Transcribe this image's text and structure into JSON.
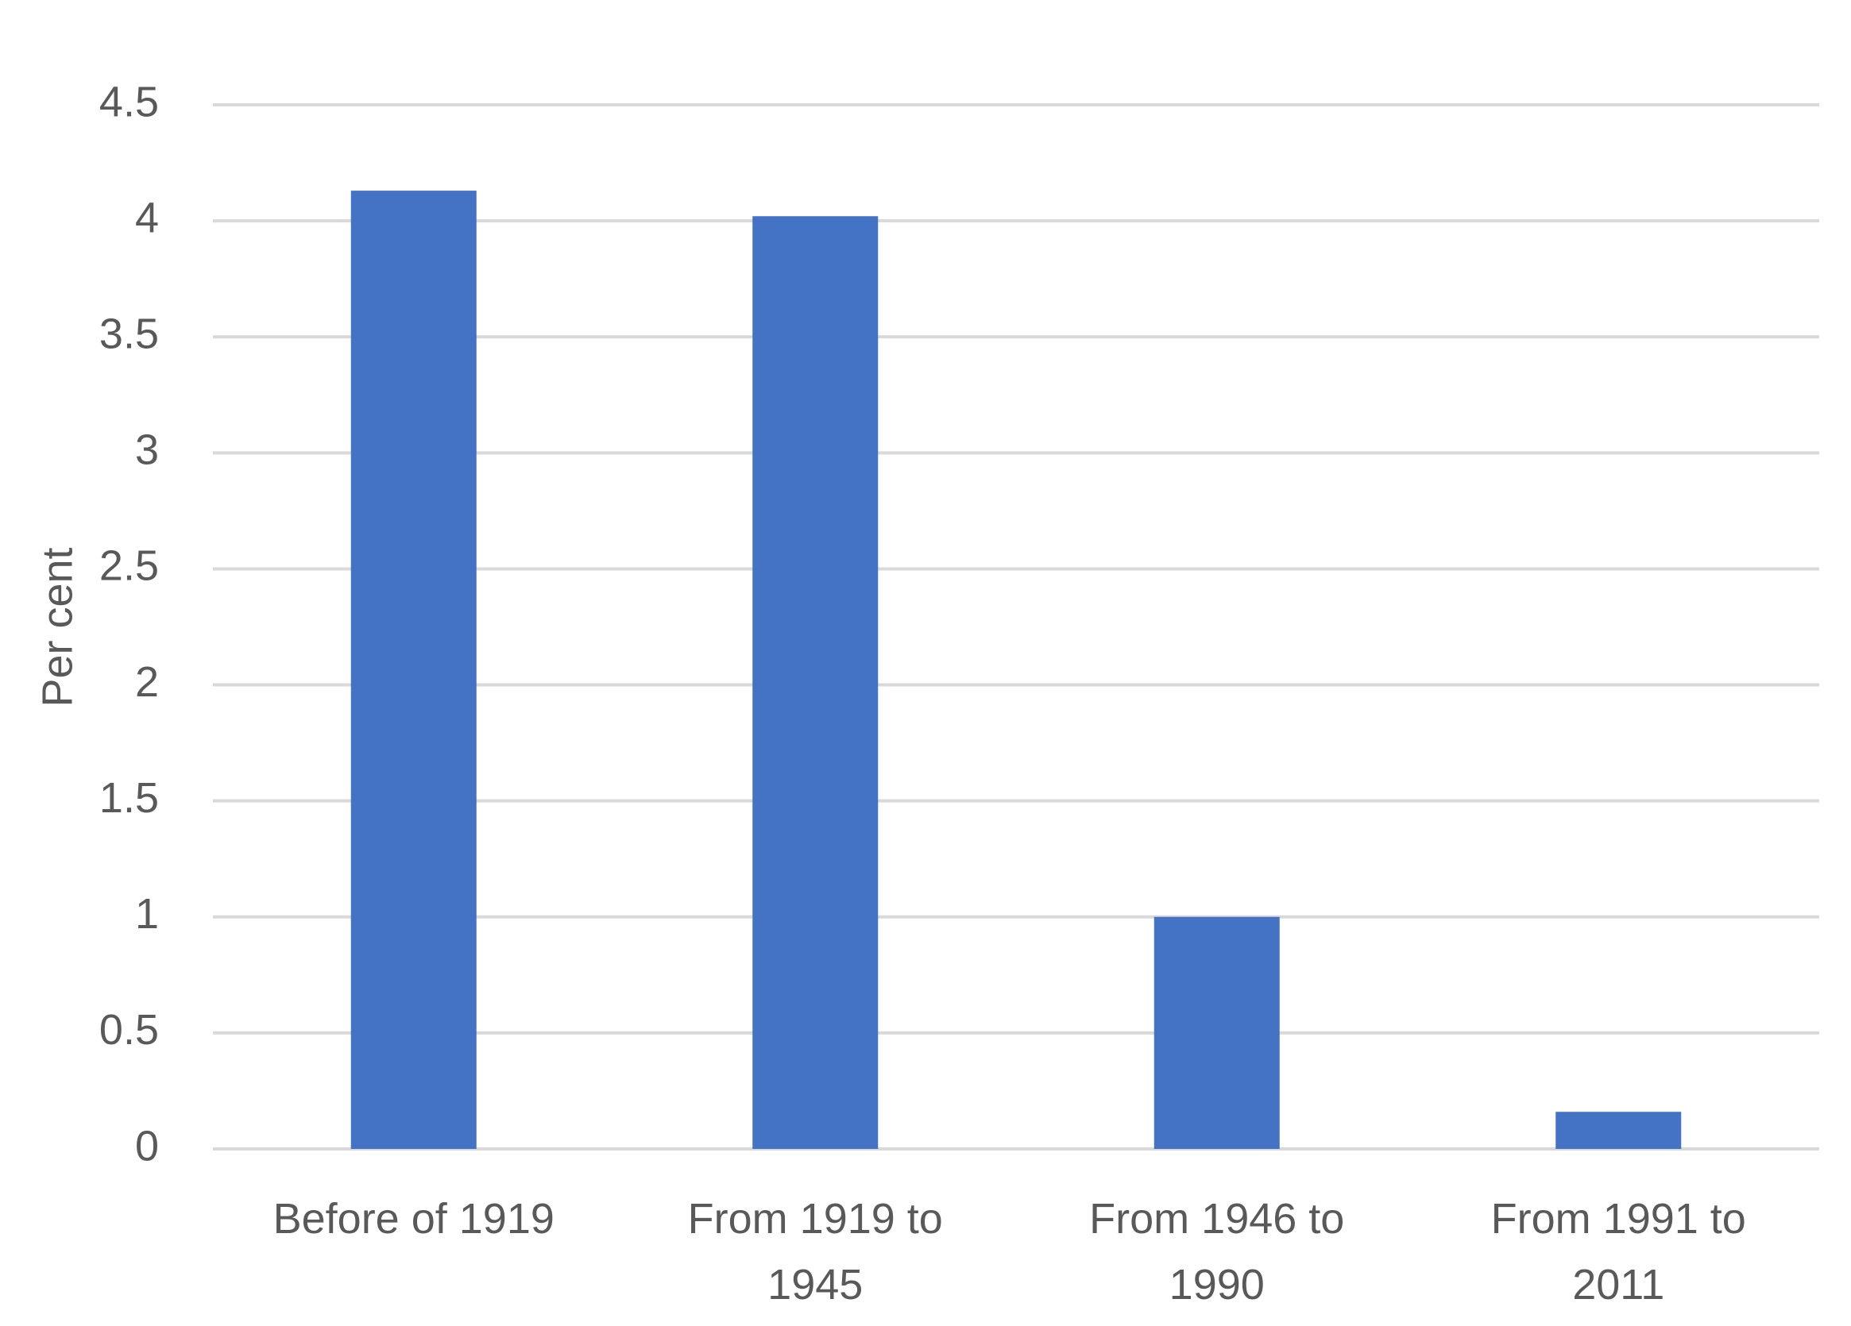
{
  "chart_data": {
    "type": "bar",
    "title": "",
    "xlabel": "",
    "ylabel": "Per cent",
    "ylim": [
      0,
      4.5
    ],
    "yticks": [
      "0",
      "0.5",
      "1",
      "1.5",
      "2",
      "2.5",
      "3",
      "3.5",
      "4",
      "4.5"
    ],
    "categories": [
      [
        "Before of 1919"
      ],
      [
        "From 1919 to",
        "1945"
      ],
      [
        "From 1946 to",
        "1990"
      ],
      [
        "From 1991 to",
        "2011"
      ]
    ],
    "values": [
      4.13,
      4.02,
      1.0,
      0.16
    ],
    "grid": true,
    "legend": "none",
    "colors": {
      "bar": "#4472C4",
      "grid": "#D9D9D9",
      "text": "#595959"
    }
  }
}
